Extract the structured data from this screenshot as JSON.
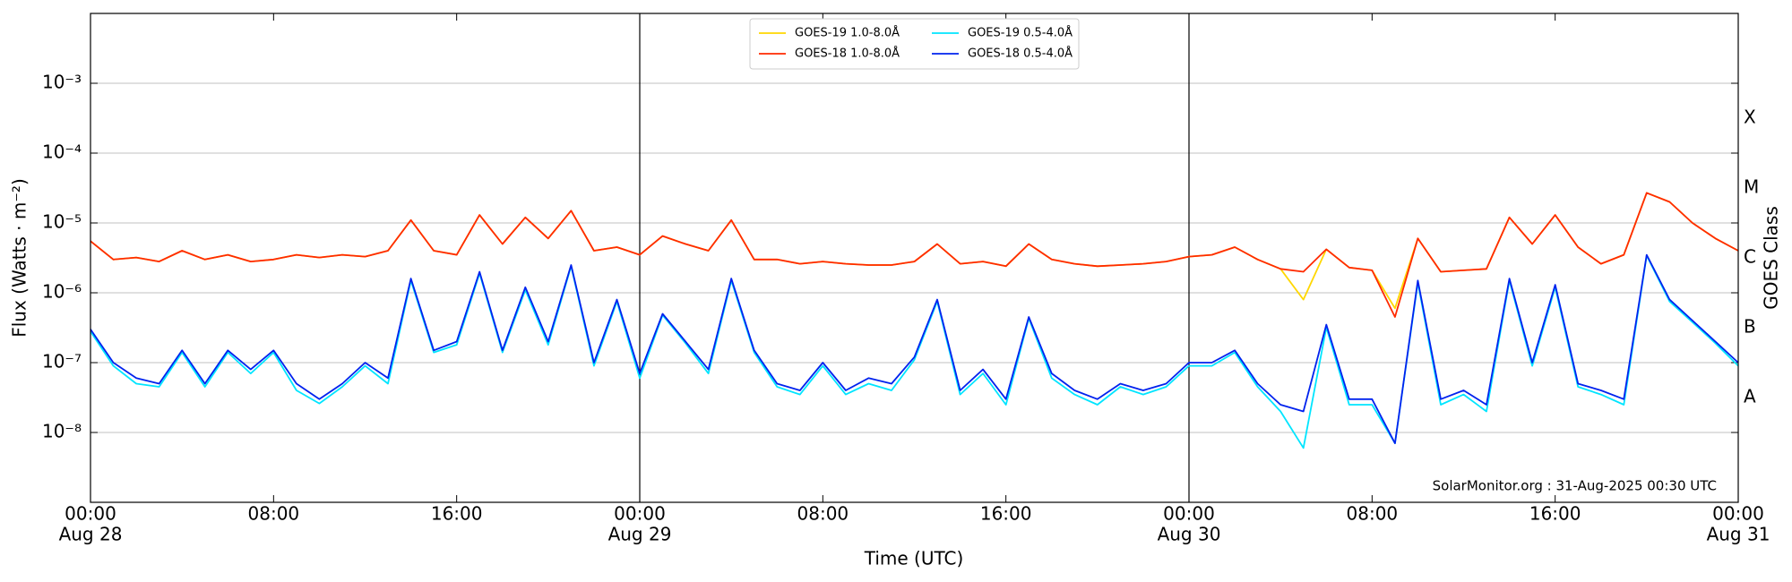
{
  "chart_data": {
    "type": "line",
    "log_y": true,
    "ylabel": "Flux (Watts · m⁻²)",
    "xlabel": "Time (UTC)",
    "y2label": "GOES Class",
    "annotation": "SolarMonitor.org : 31-Aug-2025 00:30 UTC",
    "legend": "upper center",
    "xlim": [
      0,
      72
    ],
    "ylim": [
      1e-09,
      0.01
    ],
    "xticks": [
      {
        "value": 0,
        "label": "00:00",
        "date": "Aug 28"
      },
      {
        "value": 8,
        "label": "08:00"
      },
      {
        "value": 16,
        "label": "16:00"
      },
      {
        "value": 24,
        "label": "00:00",
        "date": "Aug 29"
      },
      {
        "value": 32,
        "label": "08:00"
      },
      {
        "value": 40,
        "label": "16:00"
      },
      {
        "value": 48,
        "label": "00:00",
        "date": "Aug 30"
      },
      {
        "value": 56,
        "label": "08:00"
      },
      {
        "value": 64,
        "label": "16:00"
      },
      {
        "value": 72,
        "label": "00:00",
        "date": "Aug 31"
      }
    ],
    "yticks": [
      {
        "value": 1e-08,
        "label": "10⁻⁸"
      },
      {
        "value": 1e-07,
        "label": "10⁻⁷"
      },
      {
        "value": 1e-06,
        "label": "10⁻⁶"
      },
      {
        "value": 1e-05,
        "label": "10⁻⁵"
      },
      {
        "value": 0.0001,
        "label": "10⁻⁴"
      },
      {
        "value": 0.001,
        "label": "10⁻³"
      }
    ],
    "y2ticks": [
      {
        "value": 1e-08,
        "label": "A"
      },
      {
        "value": 1e-07,
        "label": "B"
      },
      {
        "value": 1e-06,
        "label": "C"
      },
      {
        "value": 1e-05,
        "label": "M"
      },
      {
        "value": 0.0001,
        "label": "X"
      }
    ],
    "grid": true,
    "vlines": [
      24,
      48
    ],
    "x": [
      0,
      1,
      2,
      3,
      4,
      5,
      6,
      7,
      8,
      9,
      10,
      11,
      12,
      13,
      14,
      15,
      16,
      17,
      18,
      19,
      20,
      21,
      22,
      23,
      24,
      25,
      26,
      27,
      28,
      29,
      30,
      31,
      32,
      33,
      34,
      35,
      36,
      37,
      38,
      39,
      40,
      41,
      42,
      43,
      44,
      45,
      46,
      47,
      48,
      49,
      50,
      51,
      52,
      53,
      54,
      55,
      56,
      57,
      58,
      59,
      60,
      61,
      62,
      63,
      64,
      65,
      66,
      67,
      68,
      69,
      70,
      71,
      72
    ],
    "series": [
      {
        "name": "GOES-19 1.0-8.0Å",
        "color": "#ffd700",
        "values": [
          5.5e-06,
          3e-06,
          3.2e-06,
          2.8e-06,
          4e-06,
          3e-06,
          3.5e-06,
          2.8e-06,
          3e-06,
          3.5e-06,
          3.2e-06,
          3.5e-06,
          3.3e-06,
          4e-06,
          1.1e-05,
          4e-06,
          3.5e-06,
          1.3e-05,
          5e-06,
          1.2e-05,
          6e-06,
          1.5e-05,
          4e-06,
          4.5e-06,
          3.5e-06,
          6.5e-06,
          5e-06,
          4e-06,
          1.1e-05,
          3e-06,
          3e-06,
          2.6e-06,
          2.8e-06,
          2.6e-06,
          2.5e-06,
          2.5e-06,
          2.8e-06,
          5e-06,
          2.6e-06,
          2.8e-06,
          2.4e-06,
          5e-06,
          3e-06,
          2.6e-06,
          2.4e-06,
          2.5e-06,
          2.6e-06,
          2.8e-06,
          3.3e-06,
          3.5e-06,
          4.5e-06,
          3e-06,
          2.2e-06,
          8e-07,
          4.2e-06,
          2.3e-06,
          2.1e-06,
          6e-07,
          6e-06,
          2e-06,
          2.1e-06,
          2.2e-06,
          1.2e-05,
          5e-06,
          1.3e-05,
          4.5e-06,
          2.6e-06,
          3.5e-06,
          2.7e-05,
          2e-05,
          1e-05,
          6e-06,
          4e-06
        ]
      },
      {
        "name": "GOES-18 1.0-8.0Å",
        "color": "#ff2a00",
        "values": [
          5.5e-06,
          3e-06,
          3.2e-06,
          2.8e-06,
          4e-06,
          3e-06,
          3.5e-06,
          2.8e-06,
          3e-06,
          3.5e-06,
          3.2e-06,
          3.5e-06,
          3.3e-06,
          4e-06,
          1.1e-05,
          4e-06,
          3.5e-06,
          1.3e-05,
          5e-06,
          1.2e-05,
          6e-06,
          1.5e-05,
          4e-06,
          4.5e-06,
          3.5e-06,
          6.5e-06,
          5e-06,
          4e-06,
          1.1e-05,
          3e-06,
          3e-06,
          2.6e-06,
          2.8e-06,
          2.6e-06,
          2.5e-06,
          2.5e-06,
          2.8e-06,
          5e-06,
          2.6e-06,
          2.8e-06,
          2.4e-06,
          5e-06,
          3e-06,
          2.6e-06,
          2.4e-06,
          2.5e-06,
          2.6e-06,
          2.8e-06,
          3.3e-06,
          3.5e-06,
          4.5e-06,
          3e-06,
          2.2e-06,
          2e-06,
          4.2e-06,
          2.3e-06,
          2.1e-06,
          4.5e-07,
          6e-06,
          2e-06,
          2.1e-06,
          2.2e-06,
          1.2e-05,
          5e-06,
          1.3e-05,
          4.5e-06,
          2.6e-06,
          3.5e-06,
          2.7e-05,
          2e-05,
          1e-05,
          6e-06,
          4e-06
        ]
      },
      {
        "name": "GOES-19 0.5-4.0Å",
        "color": "#00e5ff",
        "values": [
          2.8e-07,
          9e-08,
          5e-08,
          4.5e-08,
          1.4e-07,
          4.5e-08,
          1.4e-07,
          7e-08,
          1.4e-07,
          4e-08,
          2.6e-08,
          4.5e-08,
          9e-08,
          5e-08,
          1.5e-06,
          1.4e-07,
          1.8e-07,
          1.9e-06,
          1.4e-07,
          1.1e-06,
          1.8e-07,
          2.4e-06,
          9e-08,
          7.5e-07,
          6e-08,
          4.8e-07,
          1.9e-07,
          7e-08,
          1.5e-06,
          1.4e-07,
          4.5e-08,
          3.5e-08,
          9e-08,
          3.5e-08,
          5e-08,
          4e-08,
          1.1e-07,
          7.5e-07,
          3.5e-08,
          7e-08,
          2.5e-08,
          4.3e-07,
          6e-08,
          3.5e-08,
          2.5e-08,
          4.5e-08,
          3.5e-08,
          4.5e-08,
          9e-08,
          9e-08,
          1.4e-07,
          4.5e-08,
          2e-08,
          6e-09,
          3.2e-07,
          2.5e-08,
          2.5e-08,
          7e-09,
          1.4e-06,
          2.5e-08,
          3.5e-08,
          2e-08,
          1.5e-06,
          9e-08,
          1.2e-06,
          4.5e-08,
          3.5e-08,
          2.5e-08,
          3.4e-06,
          7.5e-07,
          3.8e-07,
          1.9e-07,
          9e-08
        ]
      },
      {
        "name": "GOES-18 0.5-4.0Å",
        "color": "#0022ee",
        "values": [
          3e-07,
          1e-07,
          6e-08,
          5e-08,
          1.5e-07,
          5e-08,
          1.5e-07,
          8e-08,
          1.5e-07,
          5e-08,
          3e-08,
          5e-08,
          1e-07,
          6e-08,
          1.6e-06,
          1.5e-07,
          2e-07,
          2e-06,
          1.5e-07,
          1.2e-06,
          2e-07,
          2.5e-06,
          1e-07,
          8e-07,
          7e-08,
          5e-07,
          2e-07,
          8e-08,
          1.6e-06,
          1.5e-07,
          5e-08,
          4e-08,
          1e-07,
          4e-08,
          6e-08,
          5e-08,
          1.2e-07,
          8e-07,
          4e-08,
          8e-08,
          3e-08,
          4.5e-07,
          7e-08,
          4e-08,
          3e-08,
          5e-08,
          4e-08,
          5e-08,
          1e-07,
          1e-07,
          1.5e-07,
          5e-08,
          2.5e-08,
          2e-08,
          3.5e-07,
          3e-08,
          3e-08,
          7e-09,
          1.5e-06,
          3e-08,
          4e-08,
          2.5e-08,
          1.6e-06,
          1e-07,
          1.3e-06,
          5e-08,
          4e-08,
          3e-08,
          3.5e-06,
          8e-07,
          4e-07,
          2e-07,
          1e-07
        ]
      }
    ]
  }
}
